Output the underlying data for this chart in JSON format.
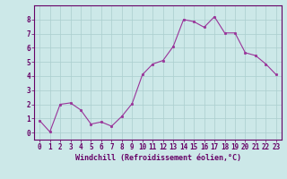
{
  "x": [
    0,
    1,
    2,
    3,
    4,
    5,
    6,
    7,
    8,
    9,
    10,
    11,
    12,
    13,
    14,
    15,
    16,
    17,
    18,
    19,
    20,
    21,
    22,
    23
  ],
  "y": [
    0.85,
    0.05,
    2.0,
    2.1,
    1.6,
    0.6,
    0.75,
    0.45,
    1.15,
    2.05,
    4.1,
    4.85,
    5.1,
    6.1,
    8.0,
    7.85,
    7.45,
    8.2,
    7.05,
    7.05,
    5.65,
    5.45,
    4.85,
    4.1
  ],
  "line_color": "#993399",
  "marker_color": "#993399",
  "bg_color": "#cce8e8",
  "grid_color": "#aacece",
  "xlabel": "Windchill (Refroidissement éolien,°C)",
  "xlabel_color": "#660066",
  "tick_color": "#660066",
  "spine_color": "#660066",
  "xlim": [
    -0.5,
    23.5
  ],
  "ylim": [
    -0.5,
    9.0
  ],
  "yticks": [
    0,
    1,
    2,
    3,
    4,
    5,
    6,
    7,
    8
  ],
  "xticks": [
    0,
    1,
    2,
    3,
    4,
    5,
    6,
    7,
    8,
    9,
    10,
    11,
    12,
    13,
    14,
    15,
    16,
    17,
    18,
    19,
    20,
    21,
    22,
    23
  ],
  "font_size": 5.5,
  "xlabel_font_size": 6.0
}
